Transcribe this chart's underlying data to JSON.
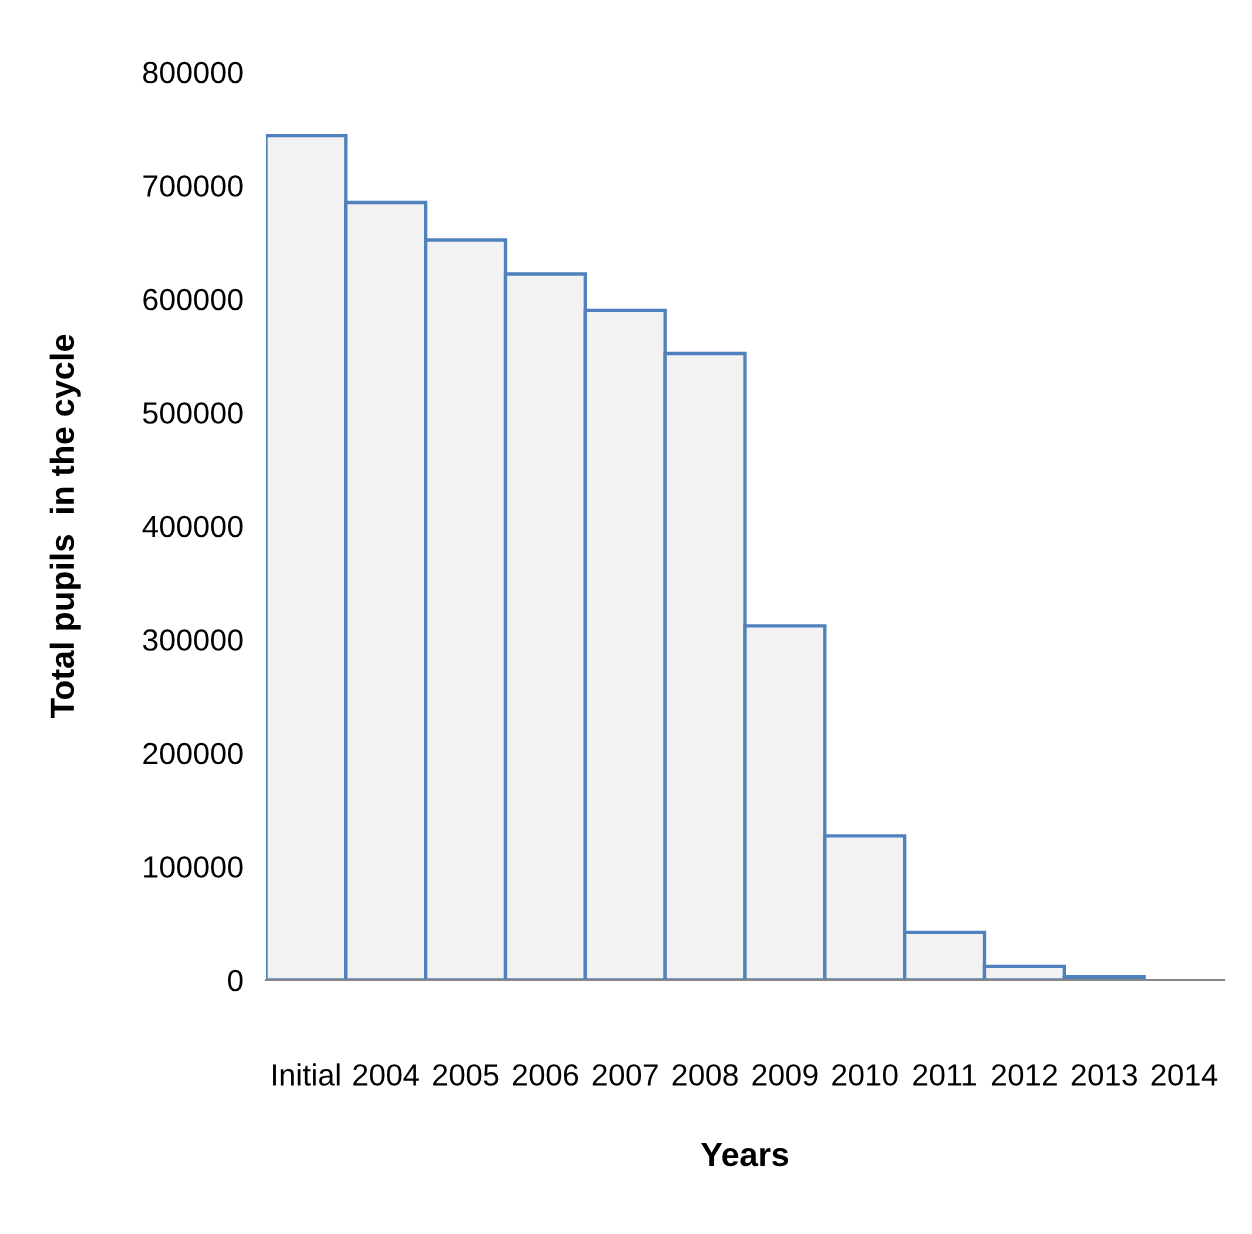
{
  "chart_data": {
    "type": "bar",
    "xlabel": "Years",
    "ylabel": "Total pupils  in the cycle",
    "categories": [
      "Initial",
      "2004",
      "2005",
      "2006",
      "2007",
      "2008",
      "2009",
      "2010",
      "2011",
      "2012",
      "2013",
      "2014"
    ],
    "values": [
      744000,
      685000,
      652000,
      622000,
      590000,
      552000,
      312000,
      127000,
      42000,
      12000,
      3000,
      null
    ],
    "color": "#f2f2f2",
    "ylim": [
      0,
      800000
    ],
    "yticks": [
      0,
      100000,
      200000,
      300000,
      400000,
      500000,
      600000,
      700000,
      800000
    ],
    "grid": false,
    "legend": false
  }
}
